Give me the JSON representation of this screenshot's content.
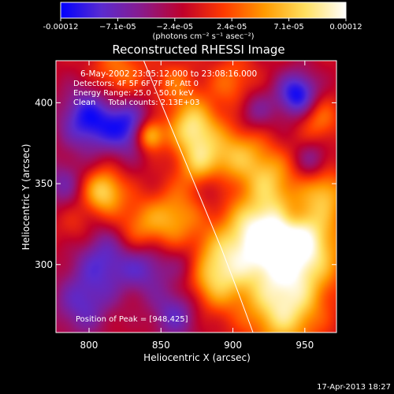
{
  "chart_data": {
    "type": "heatmap",
    "title": "Reconstructed RHESSI Image",
    "xlabel": "Heliocentric X (arcsec)",
    "ylabel": "Heliocentric Y (arcsec)",
    "xlim": [
      777,
      972
    ],
    "ylim": [
      258,
      426
    ],
    "xticks": [
      800,
      850,
      900,
      950
    ],
    "yticks": [
      300,
      350,
      400
    ],
    "xtick_labels": [
      "800",
      "850",
      "900",
      "950"
    ],
    "ytick_labels": [
      "300",
      "350",
      "400"
    ],
    "colorbar": {
      "min": -0.00012,
      "max": 0.00012,
      "tick_labels": [
        "-0.00012",
        "−7.1e-05",
        "−2.4e-05",
        "2.4e-05",
        "7.1e-05",
        "0.00012"
      ],
      "unit_label": "(photons cm⁻² s⁻¹ asec⁻²)",
      "stops": [
        "#0000ff",
        "#5a2bd0",
        "#8a1a8a",
        "#c0002a",
        "#ff3a00",
        "#ff9a00",
        "#ffe060",
        "#ffffff"
      ]
    },
    "annotations": [
      "6-May-2002 23:05:12.000 to 23:08:16.000",
      "Detectors: 4F 5F 6F 7F 8F, Att 0",
      "Energy Range: 25.0 - 50.0 keV",
      "Clean     Total counts: 2.13E+03"
    ],
    "peak_label": "Position of Peak = [948,425]",
    "peak": [
      948,
      425
    ],
    "limb_curve": [
      [
        838,
        426
      ],
      [
        850,
        400
      ],
      [
        864,
        370
      ],
      [
        878,
        340
      ],
      [
        892,
        310
      ],
      [
        904,
        282
      ],
      [
        914,
        258
      ]
    ],
    "blobs": [
      {
        "x": 948,
        "y": 312,
        "v": 1.0,
        "s": 20
      },
      {
        "x": 918,
        "y": 318,
        "v": 0.95,
        "s": 18
      },
      {
        "x": 888,
        "y": 295,
        "v": 0.8,
        "s": 16
      },
      {
        "x": 935,
        "y": 272,
        "v": 0.85,
        "s": 18
      },
      {
        "x": 872,
        "y": 385,
        "v": 0.85,
        "s": 12
      },
      {
        "x": 880,
        "y": 360,
        "v": 0.75,
        "s": 12
      },
      {
        "x": 842,
        "y": 380,
        "v": 0.9,
        "s": 7
      },
      {
        "x": 810,
        "y": 345,
        "v": 0.8,
        "s": 10
      },
      {
        "x": 835,
        "y": 320,
        "v": 0.6,
        "s": 14
      },
      {
        "x": 860,
        "y": 330,
        "v": 0.5,
        "s": 12
      },
      {
        "x": 905,
        "y": 370,
        "v": 0.55,
        "s": 13
      },
      {
        "x": 925,
        "y": 355,
        "v": 0.5,
        "s": 12
      },
      {
        "x": 960,
        "y": 390,
        "v": 0.45,
        "s": 10
      },
      {
        "x": 900,
        "y": 412,
        "v": 0.4,
        "s": 12
      },
      {
        "x": 820,
        "y": 418,
        "v": 0.45,
        "s": 14
      },
      {
        "x": 860,
        "y": 412,
        "v": 0.35,
        "s": 10
      },
      {
        "x": 965,
        "y": 345,
        "v": 0.5,
        "s": 10
      },
      {
        "x": 792,
        "y": 322,
        "v": 0.25,
        "s": 10
      },
      {
        "x": 945,
        "y": 405,
        "v": -0.85,
        "s": 10
      },
      {
        "x": 800,
        "y": 390,
        "v": -0.8,
        "s": 14
      },
      {
        "x": 828,
        "y": 385,
        "v": -0.7,
        "s": 12
      },
      {
        "x": 812,
        "y": 305,
        "v": -0.6,
        "s": 16
      },
      {
        "x": 840,
        "y": 300,
        "v": -0.55,
        "s": 12
      },
      {
        "x": 795,
        "y": 275,
        "v": -0.5,
        "s": 14
      },
      {
        "x": 860,
        "y": 270,
        "v": -0.55,
        "s": 12
      },
      {
        "x": 885,
        "y": 350,
        "v": -0.45,
        "s": 9
      },
      {
        "x": 915,
        "y": 395,
        "v": -0.4,
        "s": 10
      },
      {
        "x": 955,
        "y": 365,
        "v": -0.35,
        "s": 8
      },
      {
        "x": 940,
        "y": 330,
        "v": -0.3,
        "s": 7
      },
      {
        "x": 868,
        "y": 300,
        "v": -0.35,
        "s": 9
      },
      {
        "x": 782,
        "y": 350,
        "v": -0.4,
        "s": 10
      }
    ]
  },
  "footer": {
    "date_label": "17-Apr-2013 18:27"
  }
}
